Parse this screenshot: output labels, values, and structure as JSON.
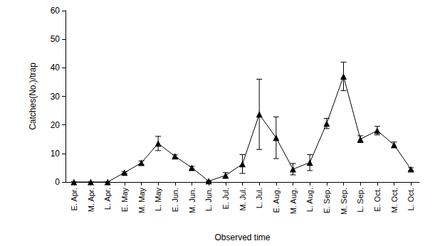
{
  "chart_data": {
    "type": "line",
    "x_label": "Observed time",
    "y_label": "Catches(No.)/trap",
    "categories": [
      "E. Apr.",
      "M. Apr.",
      "L. Apr.",
      "E. May",
      "M. May",
      "L. May",
      "E. Jun.",
      "M. Jun.",
      "L. Jun.",
      "E. Jul.",
      "M. Jul.",
      "L. Jul.",
      "E. Aug.",
      "M. Aug.",
      "L. Aug.",
      "E. Sep.",
      "M. Sep.",
      "L. Sep.",
      "E. Oct.",
      "M. Oct.",
      "L. Oct."
    ],
    "values": [
      0,
      0,
      0,
      3.3,
      6.7,
      13.5,
      9,
      5,
      0.3,
      2.3,
      6.3,
      23.7,
      15.5,
      4.5,
      6.8,
      20.5,
      37,
      15,
      18,
      13,
      4.5
    ],
    "errors": [
      0,
      0,
      0,
      0.3,
      0.7,
      2.5,
      0.5,
      0.5,
      0.2,
      1,
      3.3,
      12.3,
      7.3,
      2,
      2.8,
      1.8,
      5,
      1.2,
      1.5,
      1,
      0.5
    ],
    "color": "#000000",
    "marker": "triangle",
    "ylim": [
      0,
      60
    ],
    "yticks": [
      0,
      10,
      20,
      30,
      40,
      50,
      60
    ],
    "grid": false
  }
}
